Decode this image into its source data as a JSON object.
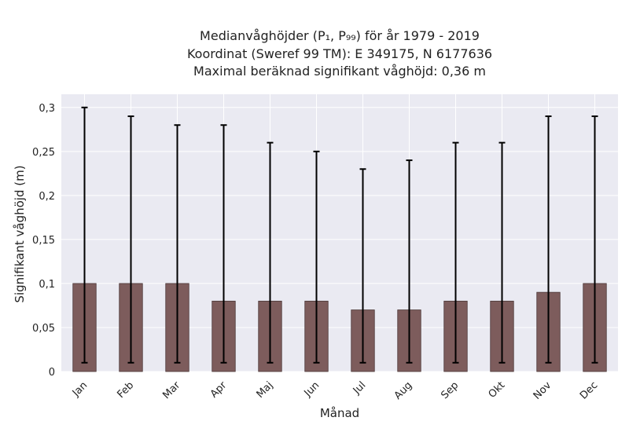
{
  "chart_data": {
    "type": "bar",
    "title_lines": [
      "Medianvåghöjder (P₁, P₉₉) för år 1979 - 2019",
      "Koordinat (Sweref 99 TM): E 349175, N 6177636",
      "Maximal beräknad signifikant våghöjd: 0,36 m"
    ],
    "xlabel": "Månad",
    "ylabel": "Signifikant våghöjd (m)",
    "categories": [
      "Jan",
      "Feb",
      "Mar",
      "Apr",
      "Maj",
      "Jun",
      "Jul",
      "Aug",
      "Sep",
      "Okt",
      "Nov",
      "Dec"
    ],
    "values": [
      0.1,
      0.1,
      0.1,
      0.08,
      0.08,
      0.08,
      0.07,
      0.07,
      0.08,
      0.08,
      0.09,
      0.1
    ],
    "p1": [
      0.01,
      0.01,
      0.01,
      0.01,
      0.01,
      0.01,
      0.01,
      0.01,
      0.01,
      0.01,
      0.01,
      0.01
    ],
    "p99": [
      0.3,
      0.29,
      0.28,
      0.28,
      0.26,
      0.25,
      0.23,
      0.24,
      0.26,
      0.26,
      0.29,
      0.29
    ],
    "ylim": [
      0,
      0.315
    ],
    "yticks": [
      0,
      0.05,
      0.1,
      0.15,
      0.2,
      0.25,
      0.3
    ],
    "ytick_labels": [
      "0",
      "0,05",
      "0,1",
      "0,15",
      "0,2",
      "0,25",
      "0,3"
    ],
    "grid": true,
    "colors": {
      "bar": "#7d5c5c",
      "bar_edge": "#4a3636",
      "errorbar": "#000000",
      "plot_bg": "#eaeaf2",
      "grid": "#ffffff"
    }
  }
}
